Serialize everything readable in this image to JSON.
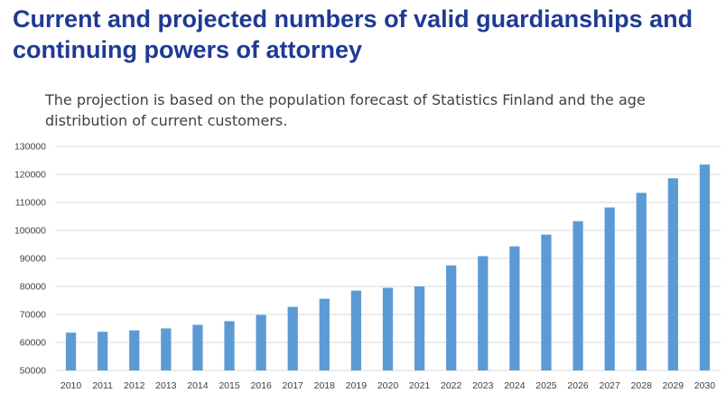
{
  "header": {
    "title": "Current and projected numbers of valid guardianships and continuing powers of attorney",
    "subtitle": "The projection is based on the population forecast of Statistics Finland and the age distribution of current customers."
  },
  "colors": {
    "title": "#1f3a93",
    "bar": "#5b9bd5",
    "grid": "#d9d9d9",
    "text": "#404040"
  },
  "chart_data": {
    "type": "bar",
    "categories": [
      "2010",
      "2011",
      "2012",
      "2013",
      "2014",
      "2015",
      "2016",
      "2017",
      "2018",
      "2019",
      "2020",
      "2021",
      "2022",
      "2023",
      "2024",
      "2025",
      "2026",
      "2027",
      "2028",
      "2029",
      "2030"
    ],
    "values": [
      63500,
      63800,
      64300,
      65000,
      66300,
      67600,
      69800,
      72700,
      75600,
      78500,
      79500,
      80000,
      87500,
      90800,
      94300,
      98500,
      103300,
      108200,
      113400,
      118600,
      123500
    ],
    "ylim": [
      50000,
      130000
    ],
    "yticks": [
      50000,
      60000,
      70000,
      80000,
      90000,
      100000,
      110000,
      120000,
      130000
    ],
    "ytick_labels": [
      "50000",
      "60000",
      "70000",
      "80000",
      "90000",
      "100000",
      "110000",
      "120000",
      "130000"
    ],
    "grid": true,
    "legend": "none",
    "xlabel": "",
    "ylabel": ""
  }
}
